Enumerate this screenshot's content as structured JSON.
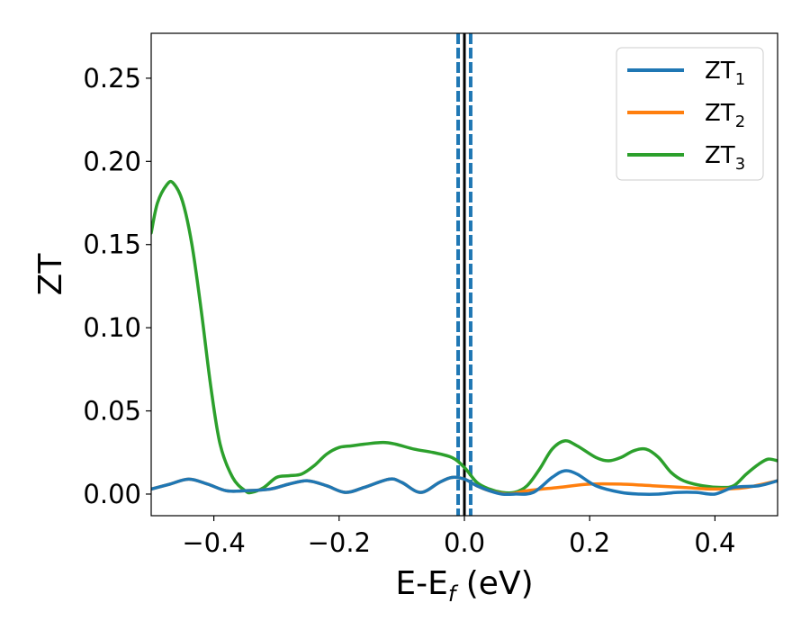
{
  "chart_data": {
    "type": "line",
    "xlabel_main": "E-E",
    "xlabel_sub": "f",
    "xlabel_unit": " (eV)",
    "ylabel": "ZT",
    "xlim": [
      -0.5,
      0.5
    ],
    "ylim": [
      -0.013,
      0.277
    ],
    "x_ticks": [
      -0.4,
      -0.2,
      0.0,
      0.2,
      0.4
    ],
    "x_tick_labels": [
      "−0.4",
      "−0.2",
      "0.0",
      "0.2",
      "0.4"
    ],
    "y_ticks": [
      0.0,
      0.05,
      0.1,
      0.15,
      0.2,
      0.25
    ],
    "y_tick_labels": [
      "0.00",
      "0.05",
      "0.10",
      "0.15",
      "0.20",
      "0.25"
    ],
    "legend_position": "top-right",
    "vertical_lines": [
      {
        "x": -0.01,
        "style": "dashed",
        "color": "#1f77b4"
      },
      {
        "x": 0.0,
        "style": "solid",
        "color": "#000000"
      },
      {
        "x": 0.01,
        "style": "dashed",
        "color": "#1f77b4"
      }
    ],
    "series": [
      {
        "name_main": "ZT",
        "name_sub": "1",
        "color": "#1f77b4",
        "points": [
          [
            -0.5,
            0.003
          ],
          [
            -0.47,
            0.006
          ],
          [
            -0.44,
            0.009
          ],
          [
            -0.41,
            0.006
          ],
          [
            -0.38,
            0.002
          ],
          [
            -0.35,
            0.002
          ],
          [
            -0.31,
            0.003
          ],
          [
            -0.28,
            0.006
          ],
          [
            -0.25,
            0.008
          ],
          [
            -0.22,
            0.005
          ],
          [
            -0.19,
            0.001
          ],
          [
            -0.16,
            0.004
          ],
          [
            -0.12,
            0.009
          ],
          [
            -0.1,
            0.007
          ],
          [
            -0.07,
            0.001
          ],
          [
            -0.04,
            0.007
          ],
          [
            -0.02,
            0.01
          ],
          [
            0.0,
            0.009
          ],
          [
            0.02,
            0.005
          ],
          [
            0.04,
            0.002
          ],
          [
            0.06,
            0.0
          ],
          [
            0.08,
            0.0
          ],
          [
            0.11,
            0.001
          ],
          [
            0.14,
            0.01
          ],
          [
            0.16,
            0.014
          ],
          [
            0.18,
            0.012
          ],
          [
            0.21,
            0.005
          ],
          [
            0.25,
            0.001
          ],
          [
            0.28,
            0.0
          ],
          [
            0.31,
            0.0
          ],
          [
            0.34,
            0.001
          ],
          [
            0.37,
            0.001
          ],
          [
            0.4,
            0.0
          ],
          [
            0.43,
            0.004
          ],
          [
            0.47,
            0.005
          ],
          [
            0.5,
            0.008
          ]
        ]
      },
      {
        "name_main": "ZT",
        "name_sub": "2",
        "color": "#ff7f0e",
        "points": [
          [
            -0.5,
            0.003
          ],
          [
            -0.47,
            0.006
          ],
          [
            -0.44,
            0.009
          ],
          [
            -0.41,
            0.006
          ],
          [
            -0.38,
            0.002
          ],
          [
            -0.35,
            0.002
          ],
          [
            -0.31,
            0.003
          ],
          [
            -0.28,
            0.006
          ],
          [
            -0.25,
            0.008
          ],
          [
            -0.22,
            0.005
          ],
          [
            -0.19,
            0.001
          ],
          [
            -0.16,
            0.004
          ],
          [
            -0.12,
            0.009
          ],
          [
            -0.1,
            0.007
          ],
          [
            -0.07,
            0.001
          ],
          [
            -0.04,
            0.007
          ],
          [
            -0.02,
            0.01
          ],
          [
            0.0,
            0.009
          ],
          [
            0.02,
            0.005
          ],
          [
            0.04,
            0.002
          ],
          [
            0.07,
            0.0
          ],
          [
            0.1,
            0.002
          ],
          [
            0.15,
            0.004
          ],
          [
            0.2,
            0.006
          ],
          [
            0.25,
            0.006
          ],
          [
            0.3,
            0.005
          ],
          [
            0.35,
            0.004
          ],
          [
            0.4,
            0.003
          ],
          [
            0.45,
            0.004
          ],
          [
            0.5,
            0.008
          ]
        ]
      },
      {
        "name_main": "ZT",
        "name_sub": "3",
        "color": "#2ca02c",
        "points": [
          [
            -0.5,
            0.157
          ],
          [
            -0.49,
            0.175
          ],
          [
            -0.475,
            0.186
          ],
          [
            -0.465,
            0.187
          ],
          [
            -0.45,
            0.176
          ],
          [
            -0.435,
            0.15
          ],
          [
            -0.42,
            0.11
          ],
          [
            -0.405,
            0.065
          ],
          [
            -0.39,
            0.03
          ],
          [
            -0.37,
            0.01
          ],
          [
            -0.35,
            0.002
          ],
          [
            -0.34,
            0.001
          ],
          [
            -0.32,
            0.004
          ],
          [
            -0.3,
            0.01
          ],
          [
            -0.28,
            0.011
          ],
          [
            -0.26,
            0.012
          ],
          [
            -0.24,
            0.017
          ],
          [
            -0.22,
            0.024
          ],
          [
            -0.2,
            0.028
          ],
          [
            -0.18,
            0.029
          ],
          [
            -0.16,
            0.03
          ],
          [
            -0.13,
            0.031
          ],
          [
            -0.11,
            0.03
          ],
          [
            -0.08,
            0.027
          ],
          [
            -0.05,
            0.025
          ],
          [
            -0.02,
            0.022
          ],
          [
            0.0,
            0.016
          ],
          [
            0.02,
            0.007
          ],
          [
            0.04,
            0.003
          ],
          [
            0.06,
            0.001
          ],
          [
            0.08,
            0.001
          ],
          [
            0.1,
            0.005
          ],
          [
            0.12,
            0.015
          ],
          [
            0.14,
            0.027
          ],
          [
            0.16,
            0.032
          ],
          [
            0.18,
            0.029
          ],
          [
            0.21,
            0.022
          ],
          [
            0.23,
            0.02
          ],
          [
            0.25,
            0.022
          ],
          [
            0.27,
            0.026
          ],
          [
            0.29,
            0.027
          ],
          [
            0.31,
            0.022
          ],
          [
            0.33,
            0.013
          ],
          [
            0.35,
            0.008
          ],
          [
            0.38,
            0.005
          ],
          [
            0.41,
            0.004
          ],
          [
            0.43,
            0.005
          ],
          [
            0.45,
            0.012
          ],
          [
            0.47,
            0.018
          ],
          [
            0.485,
            0.021
          ],
          [
            0.5,
            0.02
          ]
        ]
      }
    ]
  }
}
